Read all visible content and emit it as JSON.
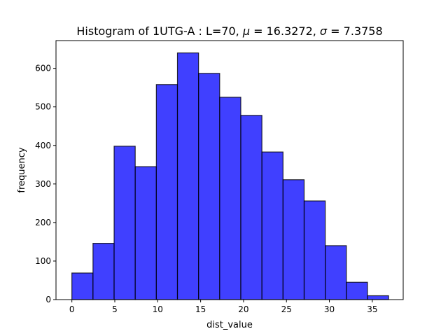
{
  "chart_data": {
    "type": "bar",
    "title_text": "Histogram of 1UTG-A : L=70, ",
    "title_mu": "μ",
    "title_mu_value": " = 16.3272, ",
    "title_sigma": "σ",
    "title_sigma_value": " = 7.3758",
    "xlabel": "dist_value",
    "ylabel": "frequency",
    "xlim": [
      -1.85,
      38.6
    ],
    "ylim": [
      0,
      672
    ],
    "xticks": [
      0,
      5,
      10,
      15,
      20,
      25,
      30,
      35
    ],
    "yticks": [
      0,
      100,
      200,
      300,
      400,
      500,
      600
    ],
    "bin_edges": [
      0,
      2.46,
      4.92,
      7.38,
      9.84,
      12.3,
      14.76,
      17.22,
      19.68,
      22.14,
      24.6,
      27.06,
      29.52,
      31.98,
      34.44,
      36.9
    ],
    "values": [
      69,
      146,
      398,
      345,
      558,
      640,
      587,
      525,
      478,
      383,
      311,
      256,
      140,
      45,
      10
    ],
    "bar_color": "#0000ff",
    "grid": false
  }
}
